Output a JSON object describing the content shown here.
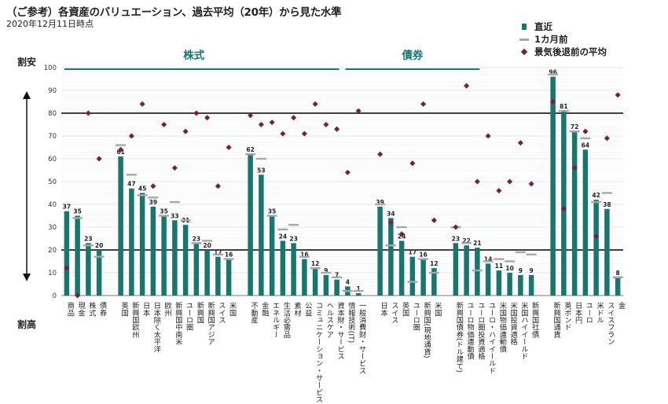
{
  "title": "（ご参考）各資産のバリュエーション、過去平均（20年）から見た水準",
  "subtitle": "2020年12月11日時点",
  "labels": {
    "cheap": "割安",
    "expensive": "割高"
  },
  "legend": [
    {
      "key": "bar",
      "label": "直近"
    },
    {
      "key": "dash",
      "label": "1カ月前"
    },
    {
      "key": "diamond",
      "label": "景気後退前の平均"
    }
  ],
  "groups": [
    {
      "label": "株式",
      "from": 0,
      "to": 25
    },
    {
      "label": "債券",
      "from": 26,
      "to": 38
    }
  ],
  "colors": {
    "bar": "#17776f",
    "dash": "#a6a6a6",
    "diamond": "#7a1d3e",
    "grid": "#9fb0ac"
  },
  "chart_data": {
    "type": "bar",
    "ylim": [
      0,
      100
    ],
    "yticks": [
      0,
      10,
      20,
      30,
      40,
      50,
      60,
      70,
      80,
      90,
      100
    ],
    "thresholds": [
      20,
      80
    ],
    "categories": [
      "商品",
      "現金",
      "株式",
      "債券",
      "",
      "英国",
      "新興国欧州",
      "日本",
      "日本除く太平洋",
      "欧州",
      "新興国中南米",
      "ユーロ圏",
      "新興国",
      "新興国アジア",
      "スイス",
      "米国",
      "",
      "不動産",
      "金融",
      "エネルギー",
      "生活必需品",
      "素材",
      "公益",
      "コミュニケーション・サービス",
      "ヘルスケア",
      "資本財・サービス",
      "情報技術(IT)",
      "一般消費財・サービス",
      "",
      "日本",
      "スイス",
      "英国",
      "ユーロ圏",
      "新興国(現地通貨)",
      "米国",
      "",
      "新興国債券(ドル建て)",
      "ユーロ物価連動債",
      "ユーロ圏投資適格",
      "ユーロ・ハイイールド",
      "米国物価連動債",
      "米国投資適格",
      "米国ハイイールド",
      "新興国社債",
      "",
      "新興国通貨",
      "英ポンド",
      "日本円",
      "ユーロ",
      "米ドル",
      "スイスフラン",
      "金"
    ],
    "series": [
      {
        "name": "直近",
        "values": [
          37,
          35,
          23,
          20,
          null,
          61,
          47,
          45,
          39,
          35,
          33,
          31,
          23,
          20,
          17,
          16,
          null,
          62,
          53,
          35,
          24,
          23,
          16,
          12,
          9,
          7,
          4,
          1,
          null,
          39,
          34,
          24,
          17,
          16,
          12,
          null,
          23,
          22,
          21,
          14,
          11,
          10,
          9,
          9,
          null,
          96,
          81,
          72,
          64,
          42,
          38,
          8
        ]
      },
      {
        "name": "1カ月前",
        "values": [
          null,
          34,
          22,
          17,
          null,
          66,
          53,
          44,
          43,
          35,
          41,
          33,
          23,
          24,
          18,
          16,
          null,
          62,
          60,
          35,
          29,
          31,
          17,
          12,
          10,
          8,
          2,
          2,
          null,
          40,
          22,
          30,
          6,
          16,
          10,
          null,
          30,
          23,
          11,
          15,
          16,
          15,
          19,
          18,
          null,
          97,
          81,
          72,
          69,
          41,
          45,
          8
        ]
      },
      {
        "name": "景気後退前の平均",
        "values": [
          12,
          0,
          80,
          60,
          null,
          64,
          70,
          84,
          48,
          75,
          56,
          72,
          80,
          78,
          48,
          65,
          null,
          79,
          75,
          76,
          71,
          78,
          71,
          84,
          75,
          73,
          54,
          81,
          null,
          62,
          32,
          27,
          58,
          84,
          33,
          null,
          30,
          92,
          50,
          70,
          46,
          50,
          67,
          49,
          null,
          85,
          38,
          56,
          72,
          26,
          69,
          88
        ]
      }
    ],
    "group_labels": [
      "株式",
      "債券"
    ]
  }
}
